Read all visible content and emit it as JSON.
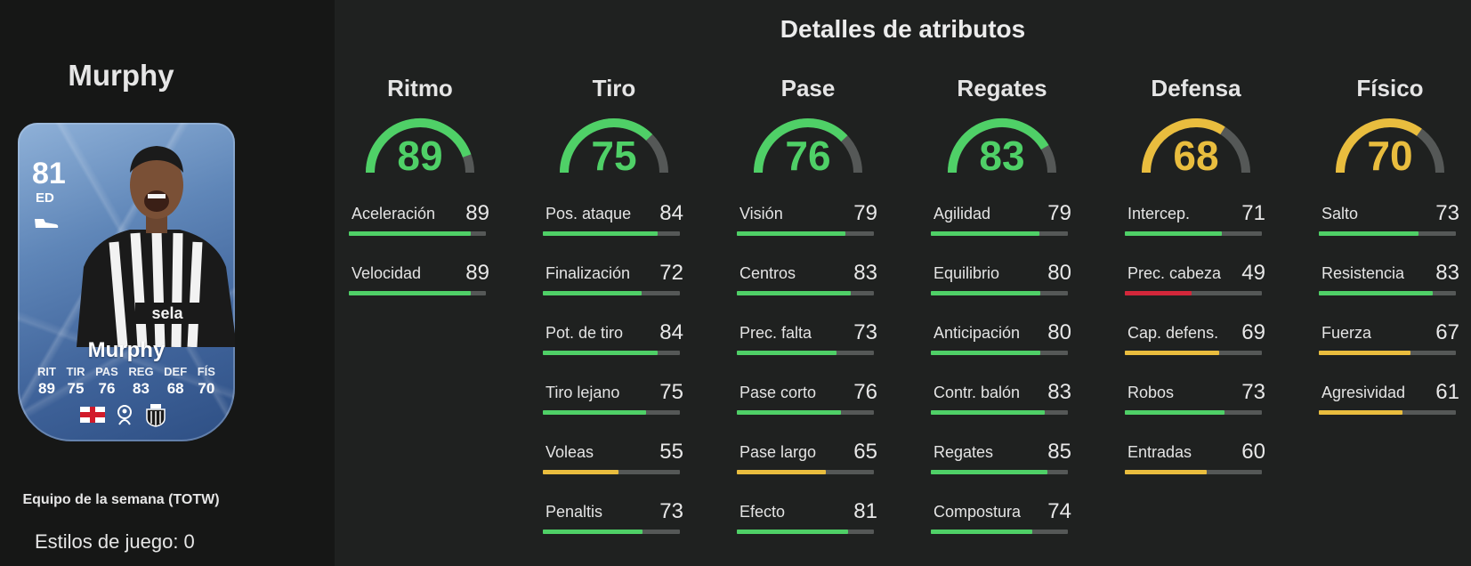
{
  "player": {
    "name": "Murphy",
    "card": {
      "rating": "81",
      "position": "ED",
      "name": "Murphy",
      "stats": [
        {
          "label": "RIT",
          "value": "89"
        },
        {
          "label": "TIR",
          "value": "75"
        },
        {
          "label": "PAS",
          "value": "76"
        },
        {
          "label": "REG",
          "value": "83"
        },
        {
          "label": "DEF",
          "value": "68"
        },
        {
          "label": "FÍS",
          "value": "70"
        }
      ],
      "icons": [
        "boot-icon",
        "england-flag-icon",
        "premier-league-icon",
        "newcastle-crest-icon"
      ]
    },
    "promo": "Equipo de la semana (TOTW)",
    "playstyles": "Estilos de juego: 0"
  },
  "section_title": "Detalles de atributos",
  "colors": {
    "high": "#4fd067",
    "mid": "#e9bd3e",
    "low": "#d3273a",
    "track": "#555857"
  },
  "categories": [
    {
      "title": "Ritmo",
      "value": 89,
      "color": "#4fd067",
      "attributes": [
        {
          "label": "Aceleración",
          "value": 89
        },
        {
          "label": "Velocidad",
          "value": 89
        }
      ]
    },
    {
      "title": "Tiro",
      "value": 75,
      "color": "#4fd067",
      "attributes": [
        {
          "label": "Pos. ataque",
          "value": 84
        },
        {
          "label": "Finalización",
          "value": 72
        },
        {
          "label": "Pot. de tiro",
          "value": 84
        },
        {
          "label": "Tiro lejano",
          "value": 75
        },
        {
          "label": "Voleas",
          "value": 55
        },
        {
          "label": "Penaltis",
          "value": 73
        }
      ]
    },
    {
      "title": "Pase",
      "value": 76,
      "color": "#4fd067",
      "attributes": [
        {
          "label": "Visión",
          "value": 79
        },
        {
          "label": "Centros",
          "value": 83
        },
        {
          "label": "Prec. falta",
          "value": 73
        },
        {
          "label": "Pase corto",
          "value": 76
        },
        {
          "label": "Pase largo",
          "value": 65
        },
        {
          "label": "Efecto",
          "value": 81
        }
      ]
    },
    {
      "title": "Regates",
      "value": 83,
      "color": "#4fd067",
      "attributes": [
        {
          "label": "Agilidad",
          "value": 79
        },
        {
          "label": "Equilibrio",
          "value": 80
        },
        {
          "label": "Anticipación",
          "value": 80
        },
        {
          "label": "Contr. balón",
          "value": 83
        },
        {
          "label": "Regates",
          "value": 85
        },
        {
          "label": "Compostura",
          "value": 74
        }
      ]
    },
    {
      "title": "Defensa",
      "value": 68,
      "color": "#e9bd3e",
      "attributes": [
        {
          "label": "Intercep.",
          "value": 71
        },
        {
          "label": "Prec. cabeza",
          "value": 49
        },
        {
          "label": "Cap. defens.",
          "value": 69
        },
        {
          "label": "Robos",
          "value": 73
        },
        {
          "label": "Entradas",
          "value": 60
        }
      ]
    },
    {
      "title": "Físico",
      "value": 70,
      "color": "#e9bd3e",
      "attributes": [
        {
          "label": "Salto",
          "value": 73
        },
        {
          "label": "Resistencia",
          "value": 83
        },
        {
          "label": "Fuerza",
          "value": 67
        },
        {
          "label": "Agresividad",
          "value": 61
        }
      ]
    }
  ]
}
